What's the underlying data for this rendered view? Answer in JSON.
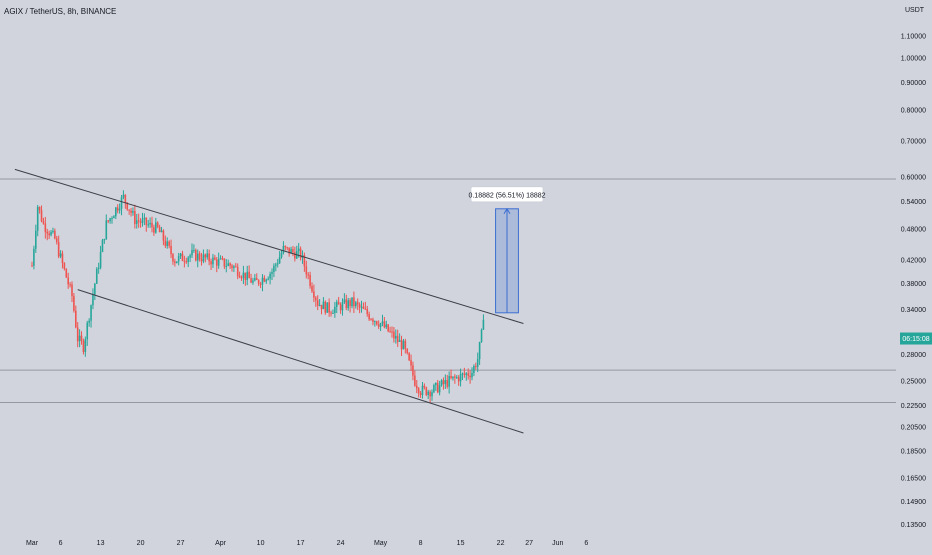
{
  "header": {
    "symbol_title": "AGIX / TetherUS, 8h, BINANCE",
    "currency": "USDT"
  },
  "price_axis": {
    "labels": [
      "1.10000",
      "1.00000",
      "0.90000",
      "0.80000",
      "0.70000",
      "0.60000",
      "0.54000",
      "0.48000",
      "0.42000",
      "0.38000",
      "0.34000",
      "0.28000",
      "0.25000",
      "0.22500",
      "0.20500",
      "0.18500",
      "0.16500",
      "0.14900",
      "0.13500"
    ],
    "current_price": "06:15:08"
  },
  "time_axis": {
    "labels": [
      "Mar",
      "6",
      "13",
      "20",
      "27",
      "Apr",
      "10",
      "17",
      "24",
      "May",
      "8",
      "15",
      "22",
      "27",
      "Jun",
      "6"
    ]
  },
  "measure_tool": {
    "label": "0.18882 (56.51%) 18882"
  },
  "colors": {
    "background": "#d1d4dc",
    "bull": "#26a69a",
    "bear": "#ef5350",
    "trendline": "#3c3f48",
    "measure": "#3d6fd1",
    "price_tag": "#26a69a"
  },
  "chart_data": {
    "type": "candlestick",
    "title": "AGIX / TetherUS, 8h, BINANCE",
    "y_scale": "log",
    "y_unit": "USDT",
    "x_ticks": [
      "Mar",
      "6",
      "13",
      "20",
      "27",
      "Apr",
      "10",
      "17",
      "24",
      "May",
      "8",
      "15",
      "22",
      "27",
      "Jun",
      "6"
    ],
    "close_path": [
      [
        "Mar 1",
        0.41
      ],
      [
        "Mar 2",
        0.53
      ],
      [
        "Mar 3",
        0.49
      ],
      [
        "Mar 5",
        0.46
      ],
      [
        "Mar 8",
        0.36
      ],
      [
        "Mar 9",
        0.3
      ],
      [
        "Mar 10",
        0.29
      ],
      [
        "Mar 12",
        0.38
      ],
      [
        "Mar 14",
        0.49
      ],
      [
        "Mar 16",
        0.53
      ],
      [
        "Mar 17",
        0.55
      ],
      [
        "Mar 19",
        0.5
      ],
      [
        "Mar 23",
        0.48
      ],
      [
        "Mar 26",
        0.42
      ],
      [
        "Mar 29",
        0.43
      ],
      [
        "Apr 5",
        0.41
      ],
      [
        "Apr 9",
        0.38
      ],
      [
        "Apr 12",
        0.4
      ],
      [
        "Apr 14",
        0.44
      ],
      [
        "Apr 17",
        0.43
      ],
      [
        "Apr 20",
        0.35
      ],
      [
        "Apr 22",
        0.34
      ],
      [
        "Apr 26",
        0.35
      ],
      [
        "May 1",
        0.32
      ],
      [
        "May 5",
        0.29
      ],
      [
        "May 7",
        0.25
      ],
      [
        "May 8",
        0.24
      ],
      [
        "May 10",
        0.24
      ],
      [
        "May 13",
        0.25
      ],
      [
        "May 17",
        0.26
      ],
      [
        "May 18",
        0.275
      ],
      [
        "May 19",
        0.32
      ]
    ],
    "channel_lines": [
      {
        "name": "upper",
        "from": [
          "Feb 26",
          0.62
        ],
        "to": [
          "May 26",
          0.32
        ]
      },
      {
        "name": "lower",
        "from": [
          "Mar 9",
          0.37
        ],
        "to": [
          "May 26",
          0.2
        ]
      }
    ],
    "horizontal_levels": [
      0.595,
      0.262,
      0.228
    ],
    "measure": {
      "from_price": 0.335,
      "to_price": 0.5235,
      "change": 0.18882,
      "percent": 56.51
    }
  }
}
